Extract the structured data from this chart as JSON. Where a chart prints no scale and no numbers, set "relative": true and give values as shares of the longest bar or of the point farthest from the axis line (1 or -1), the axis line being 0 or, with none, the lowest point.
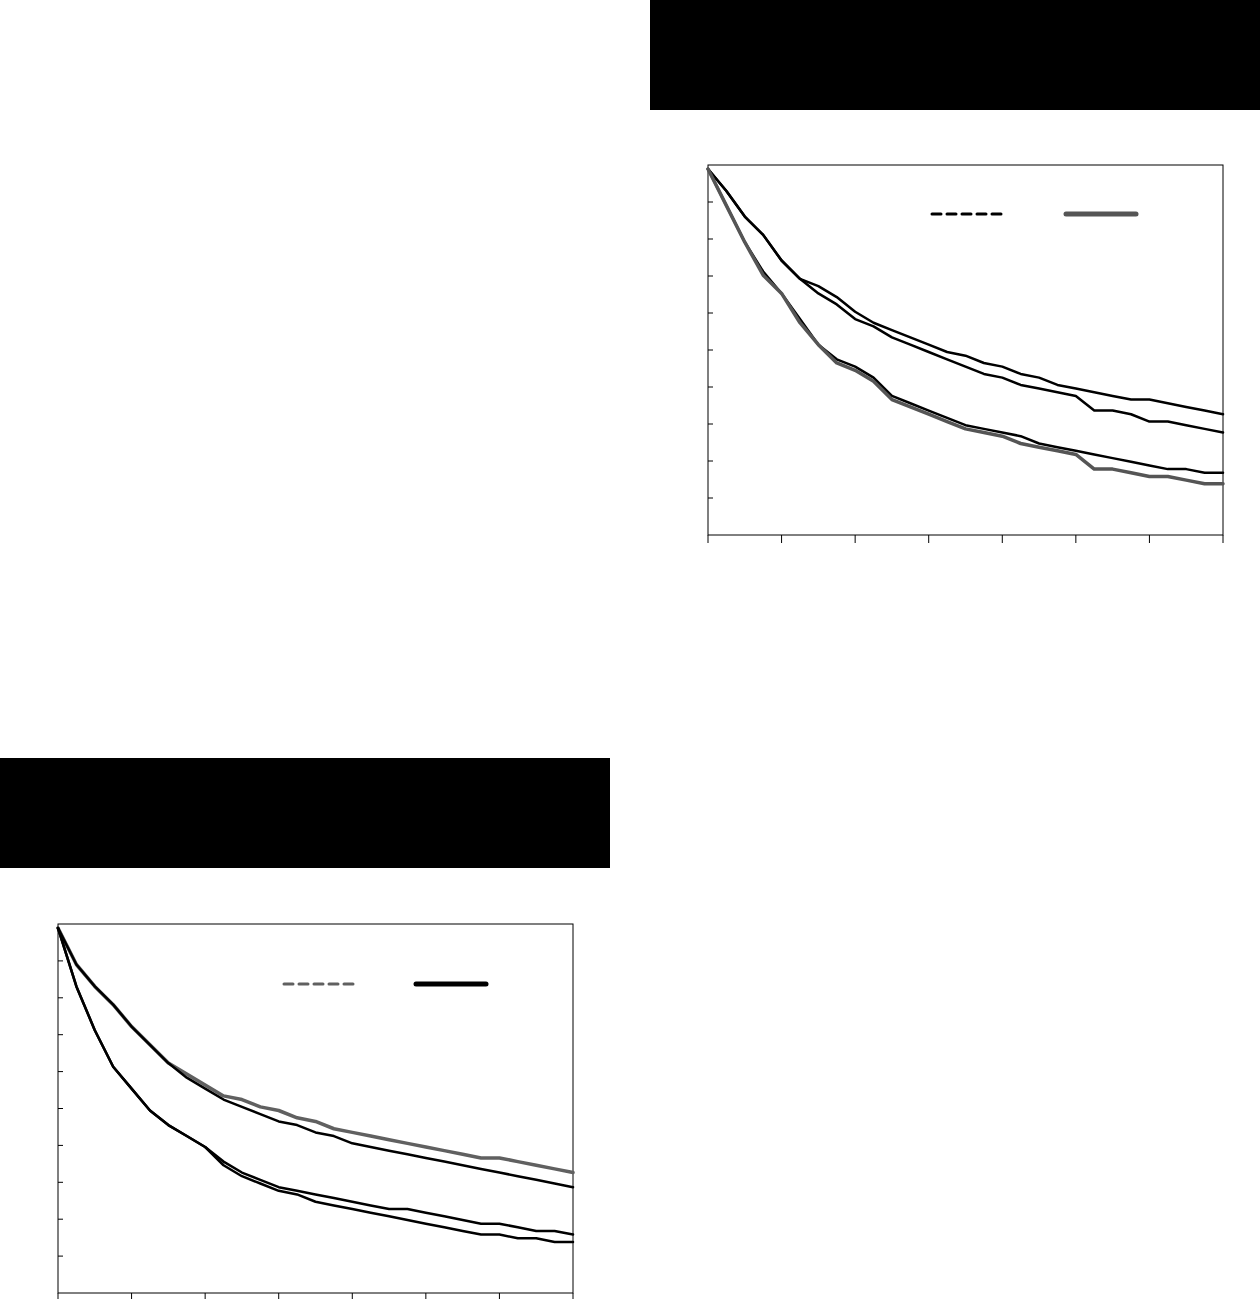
{
  "chart_data": [
    {
      "type": "line",
      "relative": true,
      "categories": [
        null,
        null,
        null,
        null,
        null,
        null,
        null,
        null,
        null,
        null,
        null,
        null,
        null,
        null,
        null,
        null,
        null,
        null,
        null,
        null,
        null,
        null,
        null,
        null,
        null,
        null,
        null,
        null,
        null
      ],
      "series": [
        {
          "color": "#000000",
          "values": [
            1,
            0.94,
            0.87,
            0.82,
            0.75,
            0.7,
            0.68,
            0.65,
            0.61,
            0.58,
            0.56,
            0.54,
            0.52,
            0.5,
            0.49,
            0.47,
            0.46,
            0.44,
            0.43,
            0.41,
            0.4,
            0.39,
            0.38,
            0.37,
            0.37,
            0.36,
            0.35,
            0.34,
            0.33
          ]
        },
        {
          "color": "#000000",
          "values": [
            1,
            0.94,
            0.87,
            0.82,
            0.75,
            0.7,
            0.66,
            0.63,
            0.59,
            0.57,
            0.54,
            0.52,
            0.5,
            0.48,
            0.46,
            0.44,
            0.43,
            0.41,
            0.4,
            0.39,
            0.38,
            0.34,
            0.34,
            0.33,
            0.31,
            0.31,
            0.3,
            0.29,
            0.28
          ]
        },
        {
          "color": "#000000",
          "values": [
            1,
            0.9,
            0.8,
            0.72,
            0.66,
            0.59,
            0.52,
            0.48,
            0.46,
            0.43,
            0.38,
            0.36,
            0.34,
            0.32,
            0.3,
            0.29,
            0.28,
            0.27,
            0.25,
            0.24,
            0.23,
            0.22,
            0.21,
            0.2,
            0.19,
            0.18,
            0.18,
            0.17,
            0.17
          ]
        },
        {
          "color": "#555555",
          "values": [
            1,
            0.9,
            0.8,
            0.71,
            0.66,
            0.58,
            0.52,
            0.47,
            0.45,
            0.42,
            0.37,
            0.35,
            0.33,
            0.31,
            0.29,
            0.28,
            0.27,
            0.25,
            0.24,
            0.23,
            0.22,
            0.18,
            0.18,
            0.17,
            0.16,
            0.16,
            0.15,
            0.14,
            0.14
          ]
        }
      ],
      "line_style": "solid",
      "marker": "none",
      "grid": false
    },
    {
      "type": "line",
      "relative": true,
      "categories": [
        null,
        null,
        null,
        null,
        null,
        null,
        null,
        null,
        null,
        null,
        null,
        null,
        null,
        null,
        null,
        null,
        null,
        null,
        null,
        null,
        null,
        null,
        null,
        null,
        null,
        null,
        null,
        null,
        null
      ],
      "series": [
        {
          "color": "#606060",
          "values": [
            1,
            0.9,
            0.84,
            0.79,
            0.73,
            0.68,
            0.63,
            0.6,
            0.57,
            0.54,
            0.53,
            0.51,
            0.5,
            0.48,
            0.47,
            0.45,
            0.44,
            0.43,
            0.42,
            0.41,
            0.4,
            0.39,
            0.38,
            0.37,
            0.37,
            0.36,
            0.35,
            0.34,
            0.33
          ]
        },
        {
          "color": "#000000",
          "values": [
            1,
            0.9,
            0.84,
            0.79,
            0.73,
            0.68,
            0.63,
            0.59,
            0.56,
            0.53,
            0.51,
            0.49,
            0.47,
            0.46,
            0.44,
            0.43,
            0.41,
            0.4,
            0.39,
            0.38,
            0.37,
            0.36,
            0.35,
            0.34,
            0.33,
            0.32,
            0.31,
            0.3,
            0.29
          ]
        },
        {
          "color": "#000000",
          "values": [
            1,
            0.84,
            0.72,
            0.62,
            0.56,
            0.5,
            0.46,
            0.43,
            0.4,
            0.36,
            0.33,
            0.31,
            0.29,
            0.28,
            0.27,
            0.26,
            0.25,
            0.24,
            0.23,
            0.23,
            0.22,
            0.21,
            0.2,
            0.19,
            0.19,
            0.18,
            0.17,
            0.17,
            0.16
          ]
        },
        {
          "color": "#000000",
          "values": [
            1,
            0.84,
            0.72,
            0.62,
            0.56,
            0.5,
            0.46,
            0.43,
            0.4,
            0.35,
            0.32,
            0.3,
            0.28,
            0.27,
            0.25,
            0.24,
            0.23,
            0.22,
            0.21,
            0.2,
            0.19,
            0.18,
            0.17,
            0.16,
            0.16,
            0.15,
            0.15,
            0.14,
            0.14
          ]
        }
      ],
      "line_style": "solid",
      "marker": "none",
      "grid": false
    }
  ]
}
